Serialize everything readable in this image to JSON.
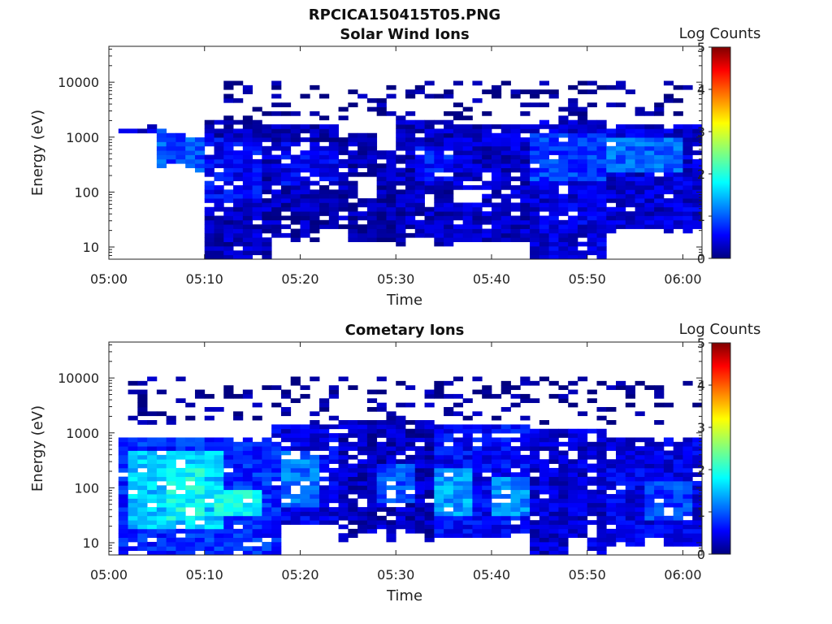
{
  "figure_title": "RPCICA150415T05.PNG",
  "colors": {
    "colormap": [
      "#00007f",
      "#0000ff",
      "#007fff",
      "#00ffff",
      "#7fff7f",
      "#ffff00",
      "#ff7f00",
      "#ff0000",
      "#7f0000"
    ],
    "axis": "#222222",
    "background": "#ffffff"
  },
  "chart_data": [
    {
      "type": "heatmap",
      "title": "Solar Wind Ions",
      "xlabel": "Time",
      "ylabel": "Energy (eV)",
      "x_ticks": [
        "05:00",
        "05:10",
        "05:20",
        "05:30",
        "05:40",
        "05:50",
        "06:00"
      ],
      "x_range_min": [
        0,
        62
      ],
      "y_scale": "log",
      "y_ticks": [
        10,
        100,
        1000,
        10000
      ],
      "y_ticklabels": [
        "10",
        "100",
        "1000",
        "10000"
      ],
      "y_range": [
        6,
        45000
      ],
      "colorbar": {
        "label": "Log Counts",
        "range": [
          0,
          5
        ],
        "ticks": [
          "0",
          "1",
          "2",
          "3",
          "4",
          "5"
        ]
      },
      "time_bin_min": 1.0,
      "energy_bin_factor": 1.2,
      "blobs": [
        {
          "t": [
            1,
            2.5
          ],
          "e": [
            1100,
            1300
          ],
          "v": 0.3
        },
        {
          "t": [
            3,
            4.5
          ],
          "e": [
            900,
            1500
          ],
          "v": 0.3
        },
        {
          "t": [
            4.5,
            6
          ],
          "e": [
            250,
            1400
          ],
          "v": 1.1
        },
        {
          "t": [
            6,
            8
          ],
          "e": [
            280,
            1100
          ],
          "v": 0.9
        },
        {
          "t": [
            8,
            10
          ],
          "e": [
            220,
            900
          ],
          "v": 1.0
        },
        {
          "t": [
            10,
            18
          ],
          "e": [
            6,
            2000
          ],
          "v": 0.3
        },
        {
          "t": [
            10,
            16
          ],
          "e": [
            60,
            900
          ],
          "v": 0.6
        },
        {
          "t": [
            17,
            24
          ],
          "e": [
            10,
            1500
          ],
          "v": 0.25
        },
        {
          "t": [
            18,
            24
          ],
          "e": [
            120,
            700
          ],
          "v": 0.55
        },
        {
          "t": [
            24,
            30
          ],
          "e": [
            12,
            1100
          ],
          "v": 0.2
        },
        {
          "t": [
            30,
            36
          ],
          "e": [
            10,
            2000
          ],
          "v": 0.3
        },
        {
          "t": [
            32,
            36
          ],
          "e": [
            150,
            600
          ],
          "v": 0.7
        },
        {
          "t": [
            36,
            44
          ],
          "e": [
            12,
            1600
          ],
          "v": 0.35
        },
        {
          "t": [
            44,
            52
          ],
          "e": [
            6,
            1800
          ],
          "v": 0.45
        },
        {
          "t": [
            44,
            52
          ],
          "e": [
            150,
            1000
          ],
          "v": 0.9
        },
        {
          "t": [
            52,
            62
          ],
          "e": [
            15,
            1600
          ],
          "v": 0.4
        },
        {
          "t": [
            52,
            60
          ],
          "e": [
            200,
            900
          ],
          "v": 1.1
        }
      ],
      "sparse": {
        "t": [
          12,
          62
        ],
        "e": [
          2000,
          10000
        ],
        "v": 0.1,
        "density": 0.25
      },
      "gaps": [
        {
          "t": [
            17,
            19
          ],
          "e": [
            6,
            14
          ]
        },
        {
          "t": [
            22,
            25
          ],
          "e": [
            6,
            20
          ]
        },
        {
          "t": [
            26,
            28
          ],
          "e": [
            70,
            180
          ]
        },
        {
          "t": [
            28,
            30
          ],
          "e": [
            500,
            1200
          ]
        },
        {
          "t": [
            31,
            34
          ],
          "e": [
            6,
            14
          ]
        },
        {
          "t": [
            36,
            39
          ],
          "e": [
            60,
            110
          ]
        },
        {
          "t": [
            39,
            43
          ],
          "e": [
            6,
            12
          ]
        },
        {
          "t": [
            53,
            56
          ],
          "e": [
            6,
            20
          ]
        }
      ],
      "seed": 7
    },
    {
      "type": "heatmap",
      "title": "Cometary Ions",
      "xlabel": "Time",
      "ylabel": "Energy (eV)",
      "x_ticks": [
        "05:00",
        "05:10",
        "05:20",
        "05:30",
        "05:40",
        "05:50",
        "06:00"
      ],
      "x_range_min": [
        0,
        62
      ],
      "y_scale": "log",
      "y_ticks": [
        10,
        100,
        1000,
        10000
      ],
      "y_ticklabels": [
        "10",
        "100",
        "1000",
        "10000"
      ],
      "y_range": [
        6,
        45000
      ],
      "colorbar": {
        "label": "Log Counts",
        "range": [
          0,
          5
        ],
        "ticks": [
          "0",
          "1",
          "2",
          "3",
          "4",
          "5"
        ]
      },
      "time_bin_min": 1.0,
      "energy_bin_factor": 1.2,
      "blobs": [
        {
          "t": [
            1,
            18
          ],
          "e": [
            6,
            800
          ],
          "v": 0.8
        },
        {
          "t": [
            2,
            12
          ],
          "e": [
            15,
            400
          ],
          "v": 1.6
        },
        {
          "t": [
            6,
            10
          ],
          "e": [
            25,
            250
          ],
          "v": 1.9
        },
        {
          "t": [
            11,
            16
          ],
          "e": [
            30,
            90
          ],
          "v": 1.9
        },
        {
          "t": [
            17,
            24
          ],
          "e": [
            20,
            1200
          ],
          "v": 0.5
        },
        {
          "t": [
            18,
            22
          ],
          "e": [
            40,
            400
          ],
          "v": 1.2
        },
        {
          "t": [
            24,
            34
          ],
          "e": [
            10,
            1500
          ],
          "v": 0.3
        },
        {
          "t": [
            28,
            32
          ],
          "e": [
            50,
            250
          ],
          "v": 1.0
        },
        {
          "t": [
            34,
            44
          ],
          "e": [
            12,
            1200
          ],
          "v": 0.6
        },
        {
          "t": [
            34,
            38
          ],
          "e": [
            30,
            200
          ],
          "v": 1.4
        },
        {
          "t": [
            40,
            44
          ],
          "e": [
            30,
            150
          ],
          "v": 1.3
        },
        {
          "t": [
            44,
            52
          ],
          "e": [
            6,
            1000
          ],
          "v": 0.4
        },
        {
          "t": [
            52,
            62
          ],
          "e": [
            8,
            800
          ],
          "v": 0.5
        },
        {
          "t": [
            56,
            61
          ],
          "e": [
            25,
            120
          ],
          "v": 0.9
        }
      ],
      "sparse": {
        "t": [
          2,
          62
        ],
        "e": [
          1200,
          10000
        ],
        "v": 0.1,
        "density": 0.25
      },
      "gaps": [
        {
          "t": [
            19,
            20
          ],
          "e": [
            6,
            12
          ]
        },
        {
          "t": [
            22,
            24
          ],
          "e": [
            6,
            10
          ]
        },
        {
          "t": [
            26,
            29
          ],
          "e": [
            6,
            14
          ]
        },
        {
          "t": [
            30,
            33
          ],
          "e": [
            6,
            14
          ]
        },
        {
          "t": [
            38,
            40
          ],
          "e": [
            6,
            12
          ]
        },
        {
          "t": [
            48,
            50
          ],
          "e": [
            6,
            12
          ]
        },
        {
          "t": [
            56,
            58
          ],
          "e": [
            6,
            12
          ]
        }
      ],
      "seed": 11
    }
  ]
}
